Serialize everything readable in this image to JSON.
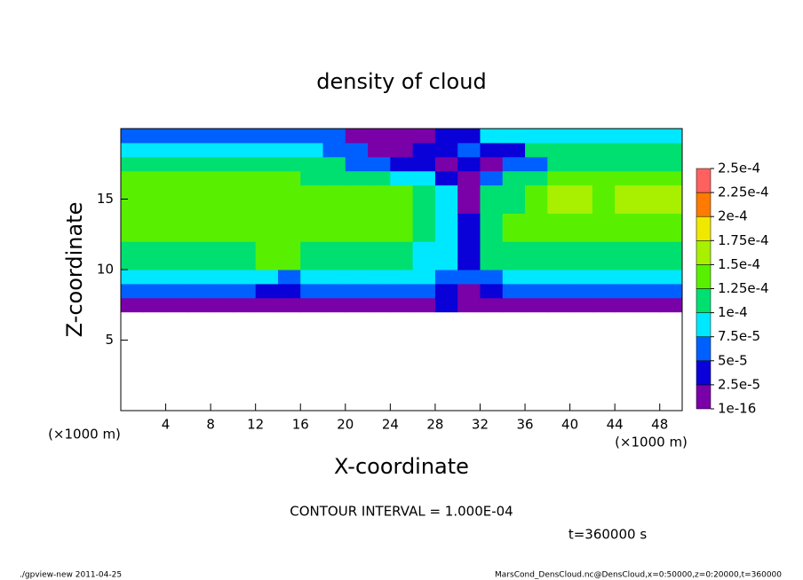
{
  "chart_data": {
    "type": "contour",
    "title": "density of cloud",
    "xlabel": "X-coordinate",
    "ylabel": "Z-coordinate",
    "xunit": "(×1000 m)",
    "yunit": "(×1000 m)",
    "xlim": [
      0,
      50
    ],
    "ylim": [
      0,
      20
    ],
    "xticks": [
      4,
      8,
      12,
      16,
      20,
      24,
      28,
      32,
      36,
      40,
      44,
      48
    ],
    "yticks": [
      5,
      10,
      15
    ],
    "x_edges": [
      0,
      2,
      4,
      6,
      8,
      10,
      12,
      14,
      16,
      18,
      20,
      22,
      24,
      26,
      28,
      30,
      32,
      34,
      36,
      38,
      40,
      42,
      44,
      46,
      48,
      50
    ],
    "z_edges": [
      7,
      8,
      9,
      10,
      12,
      14,
      16,
      17,
      18,
      19,
      20
    ],
    "z": [
      [
        2e-05,
        2e-05,
        2e-05,
        2e-05,
        2e-05,
        2e-05,
        2e-05,
        1.5e-05,
        2e-05,
        2e-05,
        2e-05,
        2e-05,
        2e-05,
        2e-05,
        2.5e-05,
        1.5e-05,
        2e-05,
        2e-05,
        2e-05,
        2e-05,
        2e-05,
        2e-05,
        2e-05,
        2e-05,
        2e-05
      ],
      [
        5e-05,
        5e-05,
        5e-05,
        5e-05,
        5e-05,
        5e-05,
        4e-05,
        3e-05,
        5e-05,
        5e-05,
        5e-05,
        5e-05,
        5e-05,
        5e-05,
        4e-05,
        2e-05,
        4e-05,
        5e-05,
        5e-05,
        5e-05,
        5e-05,
        5e-05,
        5e-05,
        5e-05,
        5e-05
      ],
      [
        8e-05,
        8e-05,
        8e-05,
        8e-05,
        8e-05,
        8e-05,
        8e-05,
        6e-05,
        8e-05,
        8e-05,
        8e-05,
        8e-05,
        8e-05,
        8e-05,
        7e-05,
        5e-05,
        7e-05,
        8e-05,
        8e-05,
        8e-05,
        8e-05,
        8e-05,
        8e-05,
        8e-05,
        8e-05
      ],
      [
        0.00012,
        0.00012,
        0.00012,
        0.00012,
        0.00012,
        0.00012,
        0.00013,
        0.00014,
        0.00012,
        0.00012,
        0.00012,
        0.00012,
        0.00012,
        9e-05,
        8e-05,
        4e-05,
        0.0001,
        0.00012,
        0.00012,
        0.00012,
        0.00012,
        0.00012,
        0.00012,
        0.00012,
        0.00012
      ],
      [
        0.00014,
        0.00014,
        0.00014,
        0.00014,
        0.000145,
        0.00014,
        0.00014,
        0.000135,
        0.00014,
        0.00014,
        0.00014,
        0.000135,
        0.00013,
        0.00011,
        9e-05,
        3e-05,
        0.00011,
        0.00013,
        0.00014,
        0.00014,
        0.00014,
        0.00014,
        0.00014,
        0.00014,
        0.00014
      ],
      [
        0.000145,
        0.000145,
        0.000145,
        0.000145,
        0.000145,
        0.000145,
        0.000145,
        0.00014,
        0.00014,
        0.00014,
        0.000135,
        0.00013,
        0.00013,
        0.00011,
        9e-05,
        2e-05,
        0.00012,
        0.00012,
        0.00013,
        0.00015,
        0.00015,
        0.000135,
        0.00015,
        0.00015,
        0.00015
      ],
      [
        0.00013,
        0.00013,
        0.00013,
        0.00013,
        0.00013,
        0.00013,
        0.00013,
        0.00013,
        0.00012,
        0.00012,
        0.00012,
        0.00012,
        8e-05,
        8e-05,
        4e-05,
        2e-05,
        5e-05,
        0.0001,
        0.0001,
        0.00014,
        0.00014,
        0.00014,
        0.00014,
        0.00014,
        0.00014
      ],
      [
        0.00011,
        0.00011,
        0.00011,
        0.00011,
        0.00011,
        0.00011,
        0.00011,
        0.0001,
        0.0001,
        0.0001,
        7e-05,
        7e-05,
        3e-05,
        3e-05,
        1e-05,
        3e-05,
        2e-05,
        6e-05,
        6e-05,
        0.00011,
        0.00011,
        0.00011,
        0.00011,
        0.00011,
        0.00011
      ],
      [
        9e-05,
        9e-05,
        9e-05,
        9e-05,
        9e-05,
        9e-05,
        9e-05,
        8e-05,
        8e-05,
        5e-05,
        5e-05,
        1e-05,
        1e-05,
        3e-05,
        3e-05,
        6e-05,
        3e-05,
        3e-05,
        0.0001,
        0.0001,
        0.0001,
        0.0001,
        0.0001,
        0.0001,
        0.0001
      ],
      [
        7e-05,
        7e-05,
        7e-05,
        7e-05,
        7e-05,
        7e-05,
        7e-05,
        7e-05,
        5e-05,
        5e-05,
        5e-06,
        5e-06,
        5e-06,
        5e-06,
        3e-05,
        3e-05,
        8e-05,
        8e-05,
        8e-05,
        8e-05,
        8e-05,
        8e-05,
        8e-05,
        8e-05,
        8e-05
      ]
    ],
    "levels": [
      {
        "value": 1e-16,
        "label": "1e-16"
      },
      {
        "value": 2.5e-05,
        "label": "2.5e-5"
      },
      {
        "value": 5e-05,
        "label": "5e-5"
      },
      {
        "value": 7.5e-05,
        "label": "7.5e-5"
      },
      {
        "value": 0.0001,
        "label": "1e-4"
      },
      {
        "value": 0.000125,
        "label": "1.25e-4"
      },
      {
        "value": 0.00015,
        "label": "1.5e-4"
      },
      {
        "value": 0.000175,
        "label": "1.75e-4"
      },
      {
        "value": 0.0002,
        "label": "2e-4"
      },
      {
        "value": 0.000225,
        "label": "2.25e-4"
      },
      {
        "value": 0.00025,
        "label": "2.5e-4"
      }
    ],
    "colors": [
      "#7a00a8",
      "#0a00d8",
      "#0060ff",
      "#00e8ff",
      "#00e070",
      "#58f000",
      "#a8f000",
      "#f0e800",
      "#ff7a00",
      "#ff6060"
    ],
    "annotations": [
      "CONTOUR INTERVAL = 1.000E-04",
      "t=360000 s"
    ],
    "footer_left": "./gpview-new  2011-04-25",
    "footer_right": "MarsCond_DensCloud.nc@DensCloud,x=0:50000,z=0:20000,t=360000"
  }
}
